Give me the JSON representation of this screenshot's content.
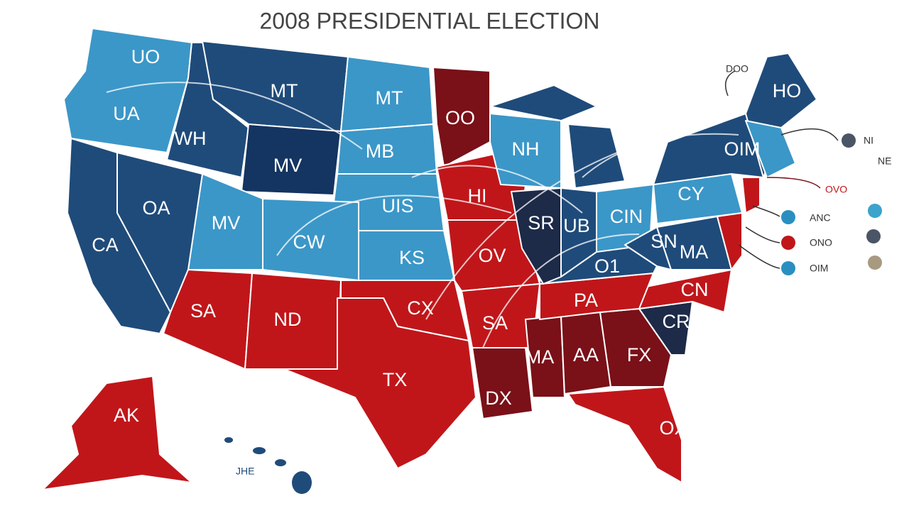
{
  "title": "2008 PRESIDENTIAL ELECTION",
  "states": [
    "UO",
    "UA",
    "MT",
    "WH",
    "MV",
    "MT",
    "MB",
    "OO",
    "NH",
    "HO",
    "OIM",
    "CA",
    "OA",
    "MV",
    "CW",
    "UIS",
    "KS",
    "HI",
    "OV",
    "SR",
    "UB",
    "CIN",
    "CY",
    "SN",
    "MA",
    "O1",
    "SA",
    "ND",
    "CX",
    "SA",
    "PA",
    "CN",
    "CR",
    "MA",
    "AA",
    "FX",
    "TX",
    "DX",
    "OX",
    "AK"
  ],
  "annotations": [
    "DOO",
    "NI",
    "NE",
    "OVO",
    "JHE"
  ],
  "legend": [
    {
      "label": "ANC"
    },
    {
      "label": "ONO"
    },
    {
      "label": "OIM"
    }
  ]
}
